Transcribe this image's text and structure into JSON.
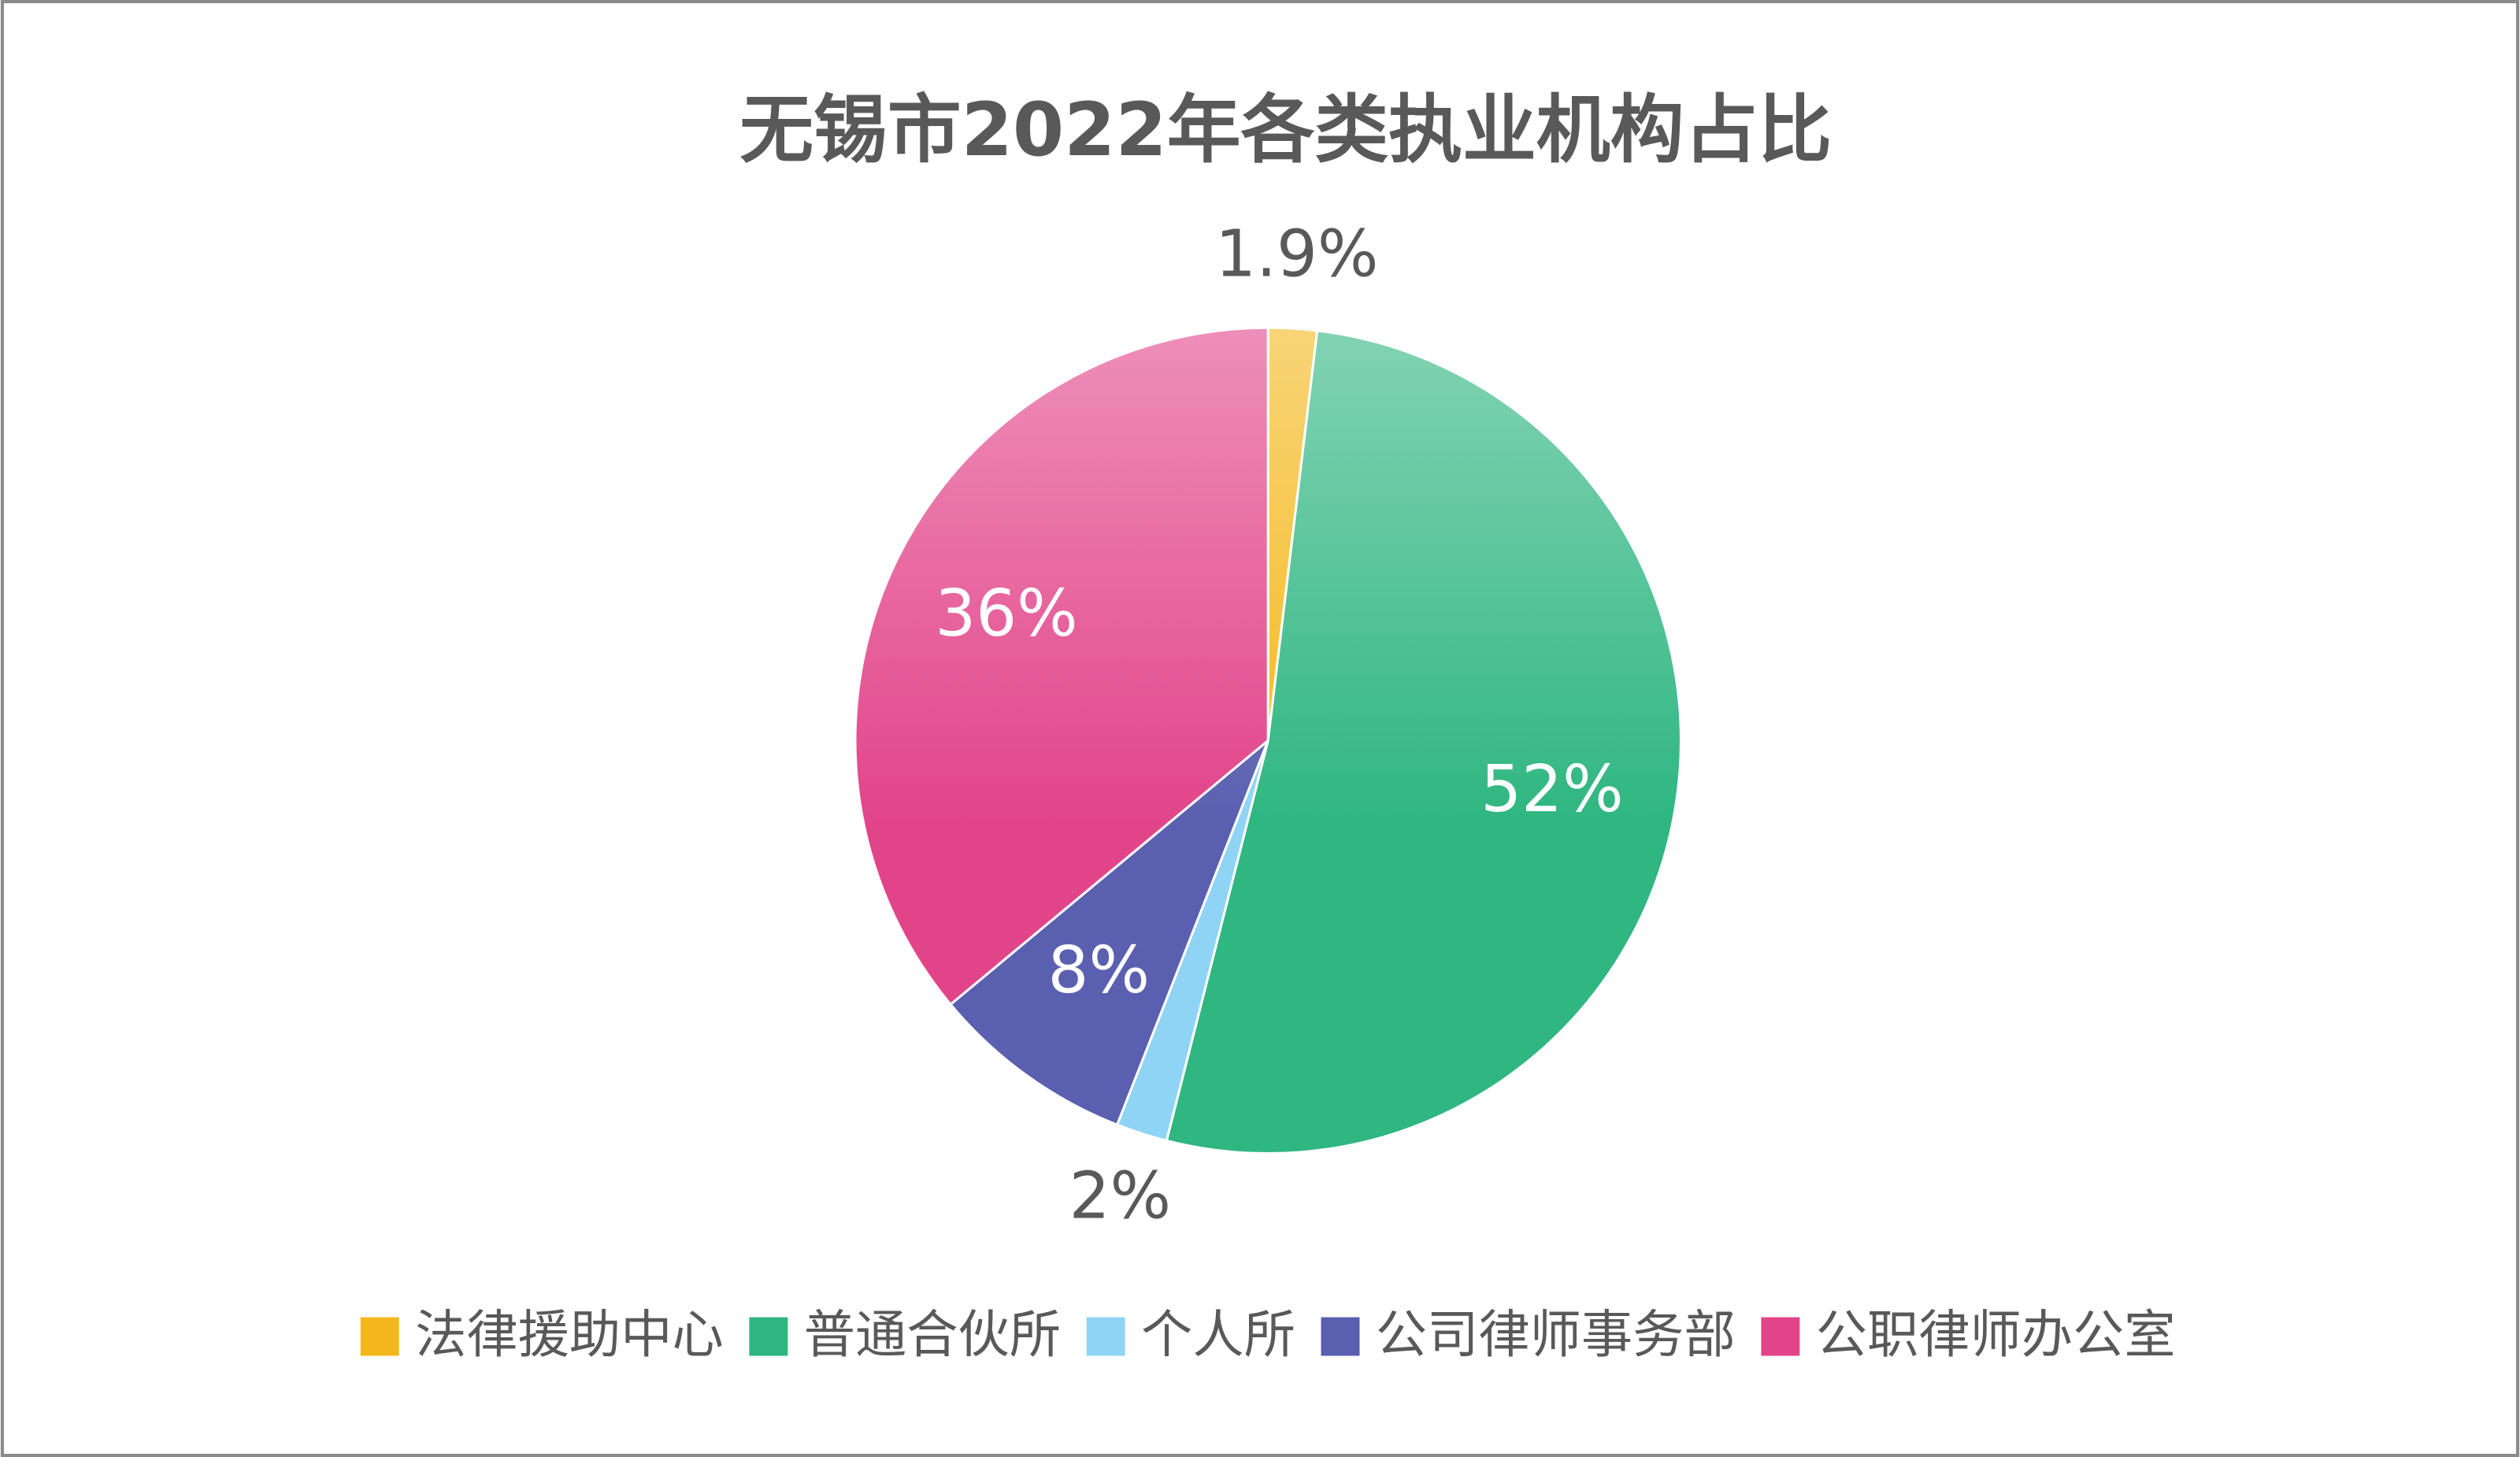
{
  "chart_data": {
    "type": "pie",
    "title": "无锡市2022年各类执业机构占比",
    "categories": [
      "法律援助中心",
      "普通合伙所",
      "个人所",
      "公司律师事务部",
      "公职律师办公室"
    ],
    "values": [
      1.9,
      52,
      2,
      8,
      36
    ],
    "value_labels": [
      "1.9%",
      "52%",
      "2%",
      "8%",
      "36%"
    ],
    "colors": [
      "#f4b81c",
      "#2fb681",
      "#8fd4f4",
      "#5a5fb0",
      "#e2448a"
    ],
    "legend": "bottom"
  }
}
